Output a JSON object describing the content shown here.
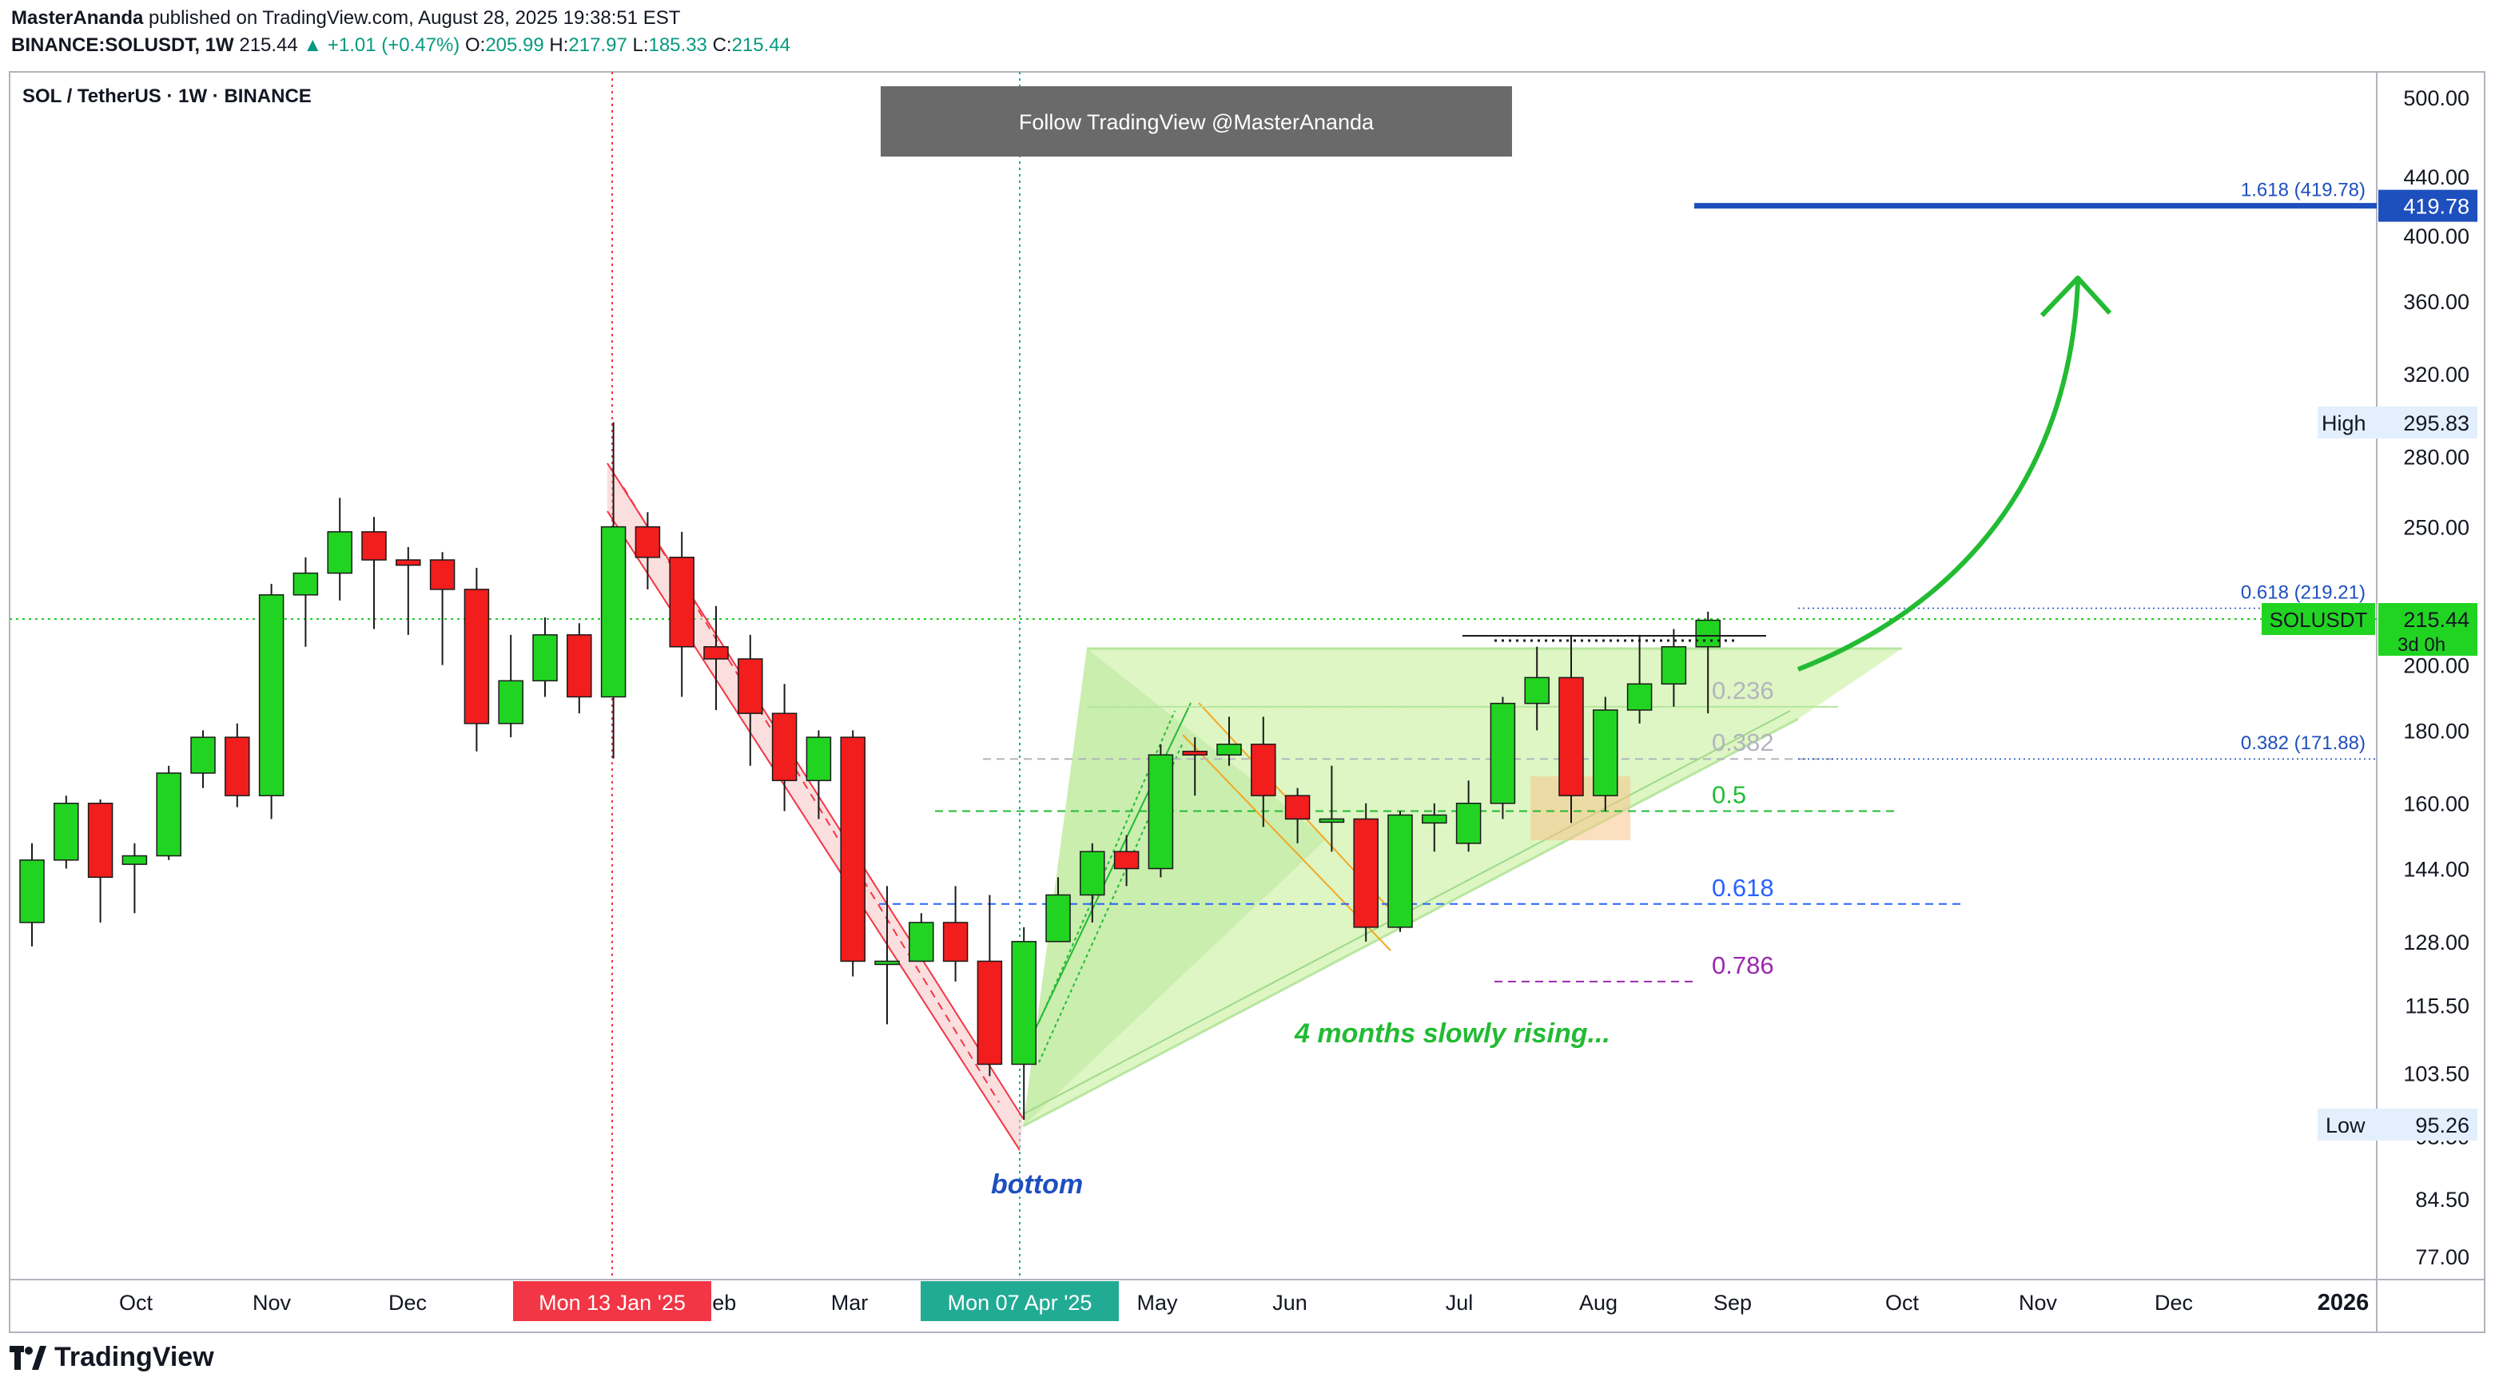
{
  "header": {
    "author": "MasterAnanda",
    "published": "published on TradingView.com, August 28, 2025 19:38:51 EST",
    "symbol_line": "BINANCE:SOLUSDT, 1W",
    "last": "215.44",
    "change": "▲ +1.01 (+0.47%)",
    "o_label": "O:",
    "o": "205.99",
    "h_label": "H:",
    "h": "217.97",
    "l_label": "L:",
    "l": "185.33",
    "c_label": "C:",
    "c": "215.44"
  },
  "pane_title": "SOL / TetherUS · 1W · BINANCE",
  "banner": "Follow TradingView @MasterAnanda",
  "footer": {
    "logo": "TradingView",
    "logo_icon": "tradingview-logo-icon"
  },
  "colors": {
    "up": "#22d422",
    "down": "#f21d1d",
    "fib_blue": "#1e4fbf",
    "green_arrow": "#22bb33"
  },
  "chart_data": {
    "type": "candlestick",
    "title": "SOL / TetherUS · 1W · BINANCE",
    "y_scale": "log",
    "ylim": [
      72,
      520
    ],
    "y_ticks": [
      "500.00",
      "440.00",
      "400.00",
      "360.00",
      "320.00",
      "280.00",
      "250.00",
      "200.00",
      "180.00",
      "160.00",
      "144.00",
      "128.00",
      "115.50",
      "103.50",
      "93.50",
      "84.50",
      "77.00"
    ],
    "x_ticks": [
      "Oct",
      "Nov",
      "Dec",
      "Jan",
      "Feb",
      "Mar",
      "Apr",
      "May",
      "Jun",
      "Jul",
      "Aug",
      "Sep",
      "Oct",
      "Nov",
      "Dec",
      "2026"
    ],
    "x_tick_labels": {
      "Oct": "Oct",
      "Nov": "Nov",
      "Dec": "Dec",
      "Feb": "Feb",
      "Mar": "Mar",
      "May": "May",
      "Jun": "Jun",
      "Jul": "Jul",
      "Aug": "Aug",
      "Sep": "Sep",
      "Oct2": "Oct",
      "Nov2": "Nov",
      "Dec2": "Dec",
      "2026": "2026"
    },
    "date_markers": [
      {
        "label": "Mon 13 Jan '25",
        "color": "#f23645"
      },
      {
        "label": "Mon 07 Apr '25",
        "color": "#22ab94"
      }
    ],
    "candles": [
      [
        132,
        146,
        127,
        150
      ],
      [
        146,
        160,
        144,
        162
      ],
      [
        160,
        142,
        132,
        161
      ],
      [
        145,
        147,
        134,
        150
      ],
      [
        147,
        168,
        146,
        170
      ],
      [
        168,
        178,
        164,
        180
      ],
      [
        178,
        162,
        159,
        182
      ],
      [
        162,
        224,
        156,
        228
      ],
      [
        224,
        232,
        206,
        238
      ],
      [
        232,
        248,
        222,
        262
      ],
      [
        248,
        237,
        212,
        254
      ],
      [
        237,
        235,
        210,
        242
      ],
      [
        237,
        226,
        200,
        240
      ],
      [
        226,
        182,
        174,
        234
      ],
      [
        182,
        195,
        178,
        210
      ],
      [
        195,
        210,
        190,
        216
      ],
      [
        210,
        190,
        185,
        214
      ],
      [
        190,
        250,
        172,
        296
      ],
      [
        250,
        238,
        226,
        256
      ],
      [
        238,
        206,
        190,
        248
      ],
      [
        206,
        202,
        186,
        220
      ],
      [
        202,
        185,
        170,
        210
      ],
      [
        185,
        166,
        158,
        194
      ],
      [
        166,
        178,
        156,
        180
      ],
      [
        178,
        124,
        121,
        180
      ],
      [
        124,
        124,
        112,
        140
      ],
      [
        124,
        132,
        125,
        134
      ],
      [
        132,
        124,
        120,
        140
      ],
      [
        124,
        105,
        103,
        138
      ],
      [
        105,
        128,
        96,
        131
      ],
      [
        128,
        138,
        130,
        142
      ],
      [
        138,
        148,
        132,
        150
      ],
      [
        148,
        144,
        140,
        152
      ],
      [
        144,
        173,
        142,
        176
      ],
      [
        174,
        173,
        162,
        178
      ],
      [
        173,
        176,
        170,
        184
      ],
      [
        176,
        162,
        154,
        184
      ],
      [
        162,
        156,
        150,
        164
      ],
      [
        156,
        156,
        148,
        170
      ],
      [
        156,
        131,
        128,
        160
      ],
      [
        131,
        157,
        130,
        158
      ],
      [
        155,
        157,
        148,
        160
      ],
      [
        150,
        160,
        148,
        166
      ],
      [
        160,
        188,
        156,
        190
      ],
      [
        188,
        196,
        180,
        206
      ],
      [
        196,
        162,
        155,
        210
      ],
      [
        162,
        186,
        158,
        190
      ],
      [
        186,
        194,
        182,
        210
      ],
      [
        194,
        206,
        187,
        212
      ],
      [
        206,
        215,
        185,
        218
      ]
    ],
    "fib_levels": [
      {
        "label": "0.236",
        "value": 187
      },
      {
        "label": "0.382",
        "value": 171.88
      },
      {
        "label": "0.5",
        "value": 158
      },
      {
        "label": "0.618",
        "value": 136
      },
      {
        "label": "0.786",
        "value": 120
      }
    ],
    "fib_right_labels": [
      {
        "label": "1.618 (419.78)",
        "value": 419.78
      },
      {
        "label": "0.618 (219.21)",
        "value": 219.21
      },
      {
        "label": "0.382 (171.88)",
        "value": 171.88
      }
    ],
    "target_value": 419.78,
    "target_badge": "419.78",
    "high": {
      "label": "High",
      "value": "295.83"
    },
    "low": {
      "label": "Low",
      "value": "95.26"
    },
    "last_price": {
      "symbol": "SOLUSDT",
      "value": "215.44",
      "countdown": "3d 0h",
      "value_num": 215.44
    },
    "annotations": [
      {
        "text": "bottom",
        "color": "#1e4fbf"
      },
      {
        "text": "4 months slowly rising...",
        "color": "#22bb33"
      }
    ]
  }
}
